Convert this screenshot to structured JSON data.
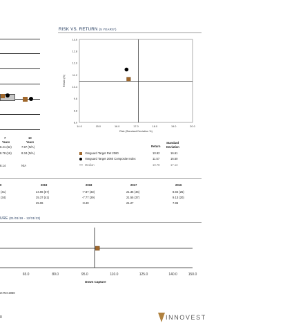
{
  "risk_return": {
    "title": "RISK VS. RETURN",
    "subtitle": "(5 YEARS*)",
    "col_return": "Return",
    "col_std_1": "Standard",
    "col_std_2": "Deviation",
    "rows": [
      {
        "label": "Vanguard Target Ret 2060",
        "return": "10.92",
        "std": "16.61"
      },
      {
        "label": "Vanguard Target 2060 Composite Index",
        "return": "11.57",
        "std": "16.50"
      },
      {
        "label": "Median",
        "return": "10.78",
        "std": "17.13"
      }
    ]
  },
  "perf_table": {
    "col7_a": "7",
    "col7_b": "Years",
    "col10_a": "10",
    "col10_b": "Years",
    "r1_a": "8.41  (52)",
    "r1_b": "7.97  (N/A)",
    "r2_a": "8.78  (16)",
    "r2_b": "8.34  (N/A)",
    "r3_a": "8.14",
    "r3_b": "N/A"
  },
  "year_table": {
    "y0": "0",
    "y1": "2019",
    "y2": "2018",
    "y3": "2017",
    "y4": "2016",
    "r1": [
      "(41)",
      "24.96  (57)",
      "-7.87  (33)",
      "21.36  (46)",
      "8.84  (25)"
    ],
    "r2": [
      "(34)",
      "25.37  (41)",
      "-7.77  (29)",
      "21.55  (37)",
      "9.13  (20)"
    ],
    "r3": [
      "",
      "25.06",
      "-8.49",
      "21.27",
      "7.86"
    ]
  },
  "capture": {
    "title": "URE",
    "subtitle": "(01/01/19 - 12/31/23)",
    "legend_partial": "et Ret 2060"
  },
  "footer": {
    "page_partial": "0",
    "logo": "INNOVEST"
  },
  "chart_data": [
    {
      "type": "scatter",
      "title": "RISK VS. RETURN (5 YEARS*)",
      "xlabel": "Risk (Standard Deviation %)",
      "ylabel": "Return (%)",
      "xlim": [
        14.0,
        20.0
      ],
      "ylim": [
        8.0,
        13.6
      ],
      "xticks": [
        "14.0",
        "15.0",
        "16.0",
        "17.0",
        "18.0",
        "19.0",
        "20.0"
      ],
      "yticks": [
        "8.0",
        "8.8",
        "9.6",
        "10.4",
        "11.2",
        "12.0",
        "12.8",
        "13.6"
      ],
      "median_lines": {
        "x": 17.13,
        "y": 10.78
      },
      "series": [
        {
          "name": "Vanguard Target Ret 2060",
          "x": [
            16.61
          ],
          "y": [
            10.92
          ],
          "color": "#a0672b",
          "marker": "square"
        },
        {
          "name": "Vanguard Target 2060 Composite Index",
          "x": [
            16.5
          ],
          "y": [
            11.57
          ],
          "color": "#000000",
          "marker": "circle"
        }
      ]
    },
    {
      "type": "scatter",
      "xlabel": "Down Capture",
      "xlim": [
        50.0,
        150.0
      ],
      "xticks": [
        "65.0",
        "80.0",
        "95.0",
        "110.0",
        "125.0",
        "140.0",
        "150.0"
      ],
      "vertical_line_x": 100,
      "series": [
        {
          "name": "Vanguard Target Ret 2060",
          "x": [
            101.5
          ],
          "color": "#a0672b",
          "marker": "square"
        }
      ]
    }
  ]
}
